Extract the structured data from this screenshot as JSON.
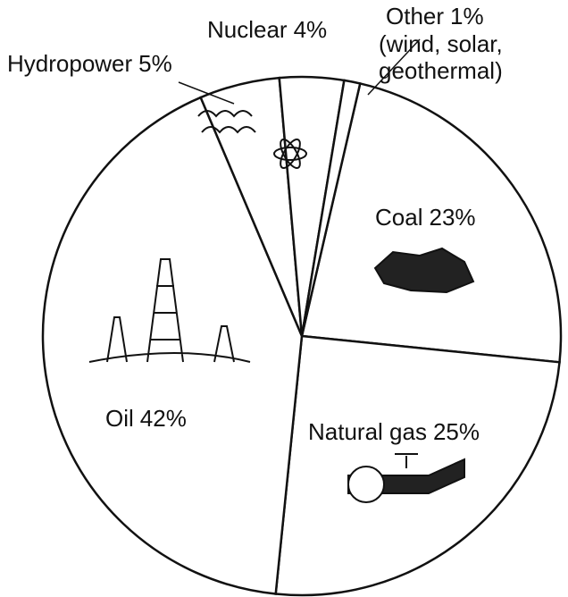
{
  "chart_data": {
    "type": "pie",
    "categories": [
      "Coal",
      "Natural gas",
      "Oil",
      "Hydropower",
      "Nuclear",
      "Other"
    ],
    "values": [
      23,
      25,
      42,
      5,
      4,
      1
    ],
    "value_labels": [
      "23%",
      "25%",
      "42%",
      "5%",
      "4%",
      "1%"
    ],
    "other_note_lines": [
      "(wind, solar,",
      "geothermal)"
    ],
    "color": "#ffffff"
  }
}
